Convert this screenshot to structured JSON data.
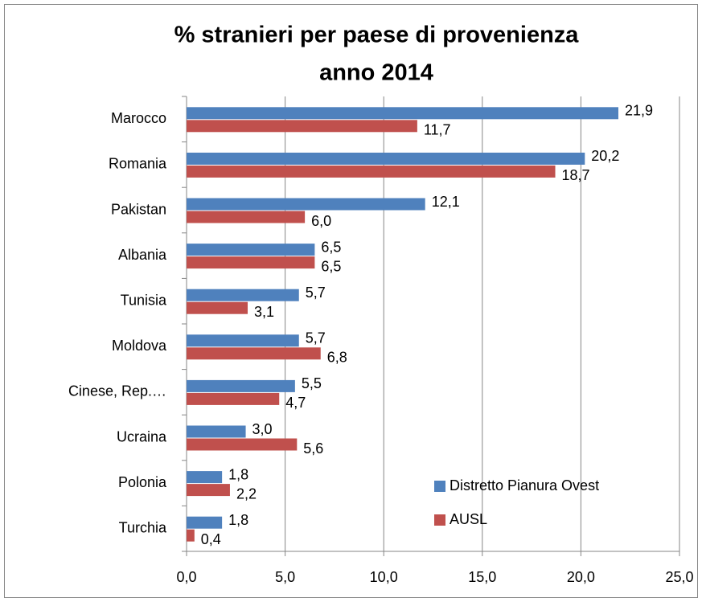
{
  "chart_data": {
    "type": "bar",
    "orientation": "horizontal",
    "title": "% stranieri per paese di provenienza",
    "subtitle": "anno 2014",
    "categories": [
      "Marocco",
      "Romania",
      "Pakistan",
      "Albania",
      "Tunisia",
      "Moldova",
      "Cinese, Rep.…",
      "Ucraina",
      "Polonia",
      "Turchia"
    ],
    "series": [
      {
        "name": "Distretto Pianura Ovest",
        "color": "#4f81bd",
        "values": [
          21.9,
          20.2,
          12.1,
          6.5,
          5.7,
          5.7,
          5.5,
          3.0,
          1.8,
          1.8
        ],
        "value_labels": [
          "21,9",
          "20,2",
          "12,1",
          "6,5",
          "5,7",
          "5,7",
          "5,5",
          "3,0",
          "1,8",
          "1,8"
        ]
      },
      {
        "name": "AUSL",
        "color": "#c0504d",
        "values": [
          11.7,
          18.7,
          6.0,
          6.5,
          3.1,
          6.8,
          4.7,
          5.6,
          2.2,
          0.4
        ],
        "value_labels": [
          "11,7",
          "18,7",
          "6,0",
          "6,5",
          "3,1",
          "6,8",
          "4,7",
          "5,6",
          "2,2",
          "0,4"
        ]
      }
    ],
    "xlim": [
      0,
      25
    ],
    "xticks": [
      {
        "value": 0,
        "label": "0,0"
      },
      {
        "value": 5,
        "label": "5,0"
      },
      {
        "value": 10,
        "label": "10,0"
      },
      {
        "value": 15,
        "label": "15,0"
      },
      {
        "value": 20,
        "label": "20,0"
      },
      {
        "value": 25,
        "label": "25,0"
      }
    ],
    "grid": true,
    "legend": "lower right"
  }
}
